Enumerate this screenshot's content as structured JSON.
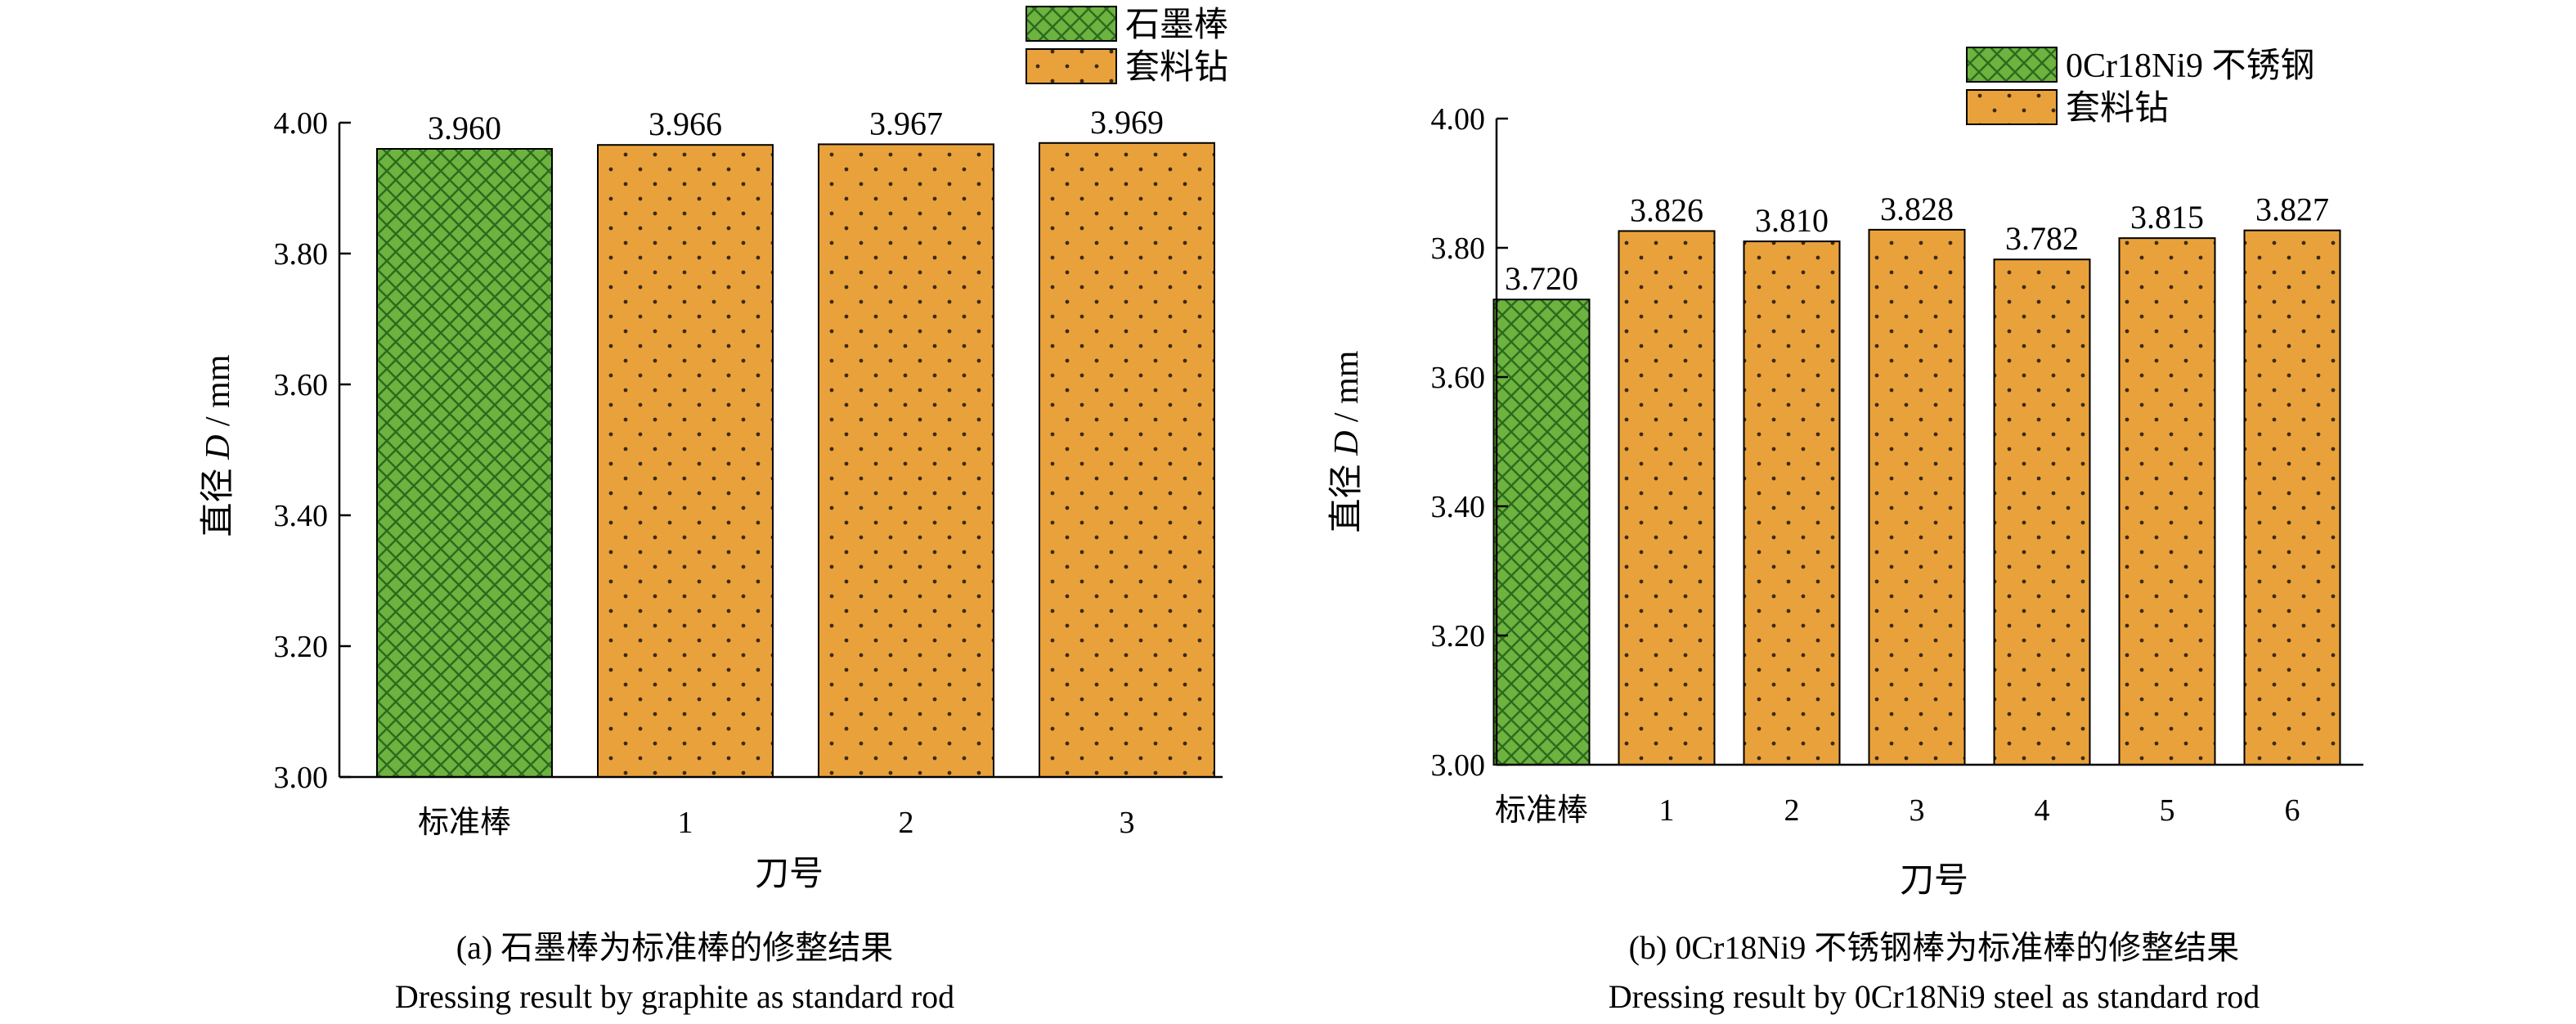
{
  "colors": {
    "green_fill": "#6cb33f",
    "green_hatch": "#2d6a1e",
    "orange_fill": "#e9a23b",
    "dot": "#3b2a10",
    "border": "#000000"
  },
  "chart_data": [
    {
      "type": "bar",
      "categories": [
        "标准棒",
        "1",
        "2",
        "3"
      ],
      "values": [
        3.96,
        3.966,
        3.967,
        3.969
      ],
      "value_labels": [
        "3.960",
        "3.966",
        "3.967",
        "3.969"
      ],
      "tick_labels": [
        "3.00",
        "3.20",
        "3.40",
        "3.60",
        "3.80",
        "4.00"
      ],
      "ylim": [
        3.0,
        4.0
      ],
      "xlabel": "刀号",
      "ylabel_prefix": "直径 ",
      "ylabel_italic": "D",
      "ylabel_suffix": " / mm",
      "legend": [
        "石墨棒",
        "套料钻"
      ],
      "legend_position": "top-right",
      "caption_cn": "(a) 石墨棒为标准棒的修整结果",
      "caption_en": "Dressing result by graphite as standard rod",
      "grid": false
    },
    {
      "type": "bar",
      "categories": [
        "标准棒",
        "1",
        "2",
        "3",
        "4",
        "5",
        "6"
      ],
      "values": [
        3.72,
        3.826,
        3.81,
        3.828,
        3.782,
        3.815,
        3.827
      ],
      "value_labels": [
        "3.720",
        "3.826",
        "3.810",
        "3.828",
        "3.782",
        "3.815",
        "3.827"
      ],
      "tick_labels": [
        "3.00",
        "3.20",
        "3.40",
        "3.60",
        "3.80",
        "4.00"
      ],
      "ylim": [
        3.0,
        4.0
      ],
      "xlabel": "刀号",
      "ylabel_prefix": "直径 ",
      "ylabel_italic": "D",
      "ylabel_suffix": " / mm",
      "legend": [
        "0Cr18Ni9 不锈钢",
        "套料钻"
      ],
      "legend_position": "top-right",
      "caption_cn": "(b) 0Cr18Ni9 不锈钢棒为标准棒的修整结果",
      "caption_en": "Dressing result by 0Cr18Ni9 steel as standard rod",
      "grid": false
    }
  ]
}
